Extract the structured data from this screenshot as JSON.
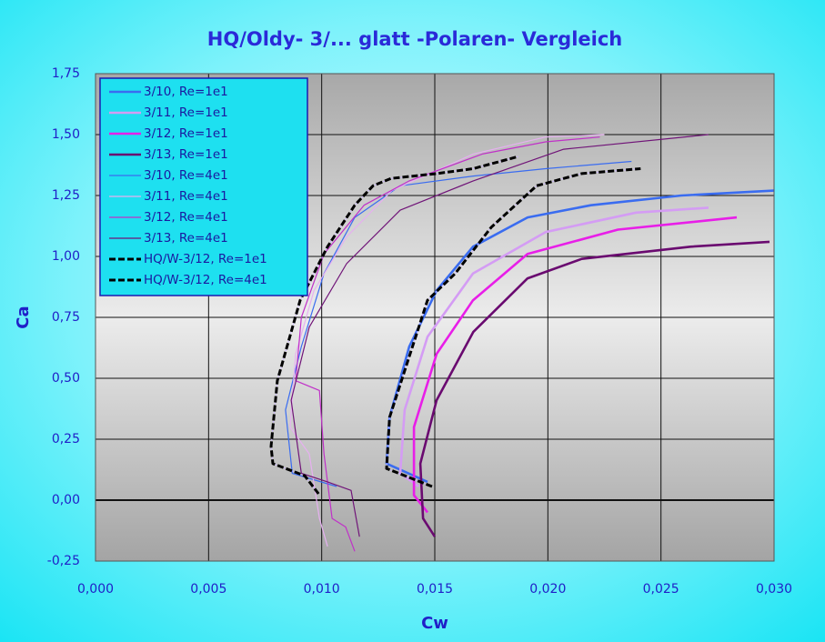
{
  "chart_data": {
    "type": "line",
    "title": "HQ/Oldy- 3/... glatt -Polaren- Vergleich",
    "x_label": "Cw",
    "y_label": "Ca",
    "xlim": [
      0,
      0.03
    ],
    "ylim": [
      -0.25,
      1.75
    ],
    "xticks": [
      {
        "value": 0,
        "label": "0,000"
      },
      {
        "value": 0.005,
        "label": "0,005"
      },
      {
        "value": 0.01,
        "label": "0,010"
      },
      {
        "value": 0.015,
        "label": "0,015"
      },
      {
        "value": 0.02,
        "label": "0,020"
      },
      {
        "value": 0.025,
        "label": "0,025"
      },
      {
        "value": 0.03,
        "label": "0,030"
      }
    ],
    "yticks": [
      {
        "value": -0.25,
        "label": "-0,25"
      },
      {
        "value": 0,
        "label": "0,00"
      },
      {
        "value": 0.25,
        "label": "0,25"
      },
      {
        "value": 0.5,
        "label": "0,50"
      },
      {
        "value": 0.75,
        "label": "0,75"
      },
      {
        "value": 1,
        "label": "1,00"
      },
      {
        "value": 1.25,
        "label": "1,25"
      },
      {
        "value": 1.5,
        "label": "1,50"
      },
      {
        "value": 1.75,
        "label": "1,75"
      }
    ],
    "grid": true,
    "legend": "top-left",
    "series": [
      {
        "name": "3/10, Re=1e1",
        "color": "#3a6cf0",
        "line_style": "bold",
        "x": [
          0.01468,
          0.01287,
          0.013,
          0.01387,
          0.01508,
          0.01669,
          0.0191,
          0.0219,
          0.0259,
          0.03
        ],
        "values": [
          0.075,
          0.15,
          0.34,
          0.63,
          0.86,
          1.04,
          1.16,
          1.21,
          1.25,
          1.27
        ]
      },
      {
        "name": "3/11, Re=1e1",
        "color": "#d49cf4",
        "line_style": "bold",
        "x": [
          0.01428,
          0.01347,
          0.01367,
          0.01468,
          0.01669,
          0.0199,
          0.0239,
          0.0271
        ],
        "values": [
          0.056,
          0.11,
          0.37,
          0.67,
          0.93,
          1.1,
          1.18,
          1.2
        ]
      },
      {
        "name": "3/12, Re=1e1",
        "color": "#e81ee8",
        "line_style": "bold",
        "x": [
          0.01468,
          0.01408,
          0.01408,
          0.01508,
          0.01669,
          0.0191,
          0.0231,
          0.02835
        ],
        "values": [
          -0.05,
          0.02,
          0.3,
          0.6,
          0.82,
          1.01,
          1.11,
          1.16
        ]
      },
      {
        "name": "3/13, Re=1e1",
        "color": "#6a0a70",
        "line_style": "bold",
        "x": [
          0.015,
          0.01448,
          0.01436,
          0.01508,
          0.0167,
          0.0191,
          0.0215,
          0.0263,
          0.0298
        ],
        "values": [
          -0.15,
          -0.075,
          0.15,
          0.41,
          0.69,
          0.91,
          0.99,
          1.04,
          1.06
        ]
      },
      {
        "name": "3/10, Re=4e1",
        "color": "#3a6cf0",
        "line_style": "thin",
        "x": [
          0.01066,
          0.0087,
          0.0084,
          0.0091,
          0.0101,
          0.01146,
          0.01347,
          0.0167,
          0.0199,
          0.0237
        ],
        "values": [
          0.056,
          0.11,
          0.37,
          0.63,
          0.93,
          1.16,
          1.29,
          1.33,
          1.36,
          1.39
        ]
      },
      {
        "name": "3/11, Re=4e1",
        "color": "#e6b0f0",
        "line_style": "thin",
        "x": [
          0.01026,
          0.0099,
          0.00945,
          0.0086,
          0.00885,
          0.00966,
          0.0111,
          0.0131,
          0.0167,
          0.0199,
          0.0225
        ],
        "values": [
          -0.19,
          -0.075,
          0.19,
          0.3,
          0.6,
          0.86,
          1.08,
          1.27,
          1.42,
          1.49,
          1.5
        ]
      },
      {
        "name": "3/12, Re=4e1",
        "color": "#c030c8",
        "line_style": "thin",
        "x": [
          0.01146,
          0.01106,
          0.01046,
          0.0101,
          0.0099,
          0.00885,
          0.0091,
          0.0101,
          0.01187,
          0.01387,
          0.0171,
          0.0199,
          0.0223
        ],
        "values": [
          -0.21,
          -0.11,
          -0.075,
          0.19,
          0.45,
          0.49,
          0.75,
          1.01,
          1.21,
          1.31,
          1.42,
          1.47,
          1.49
        ]
      },
      {
        "name": "3/13, Re=4e1",
        "color": "#701478",
        "line_style": "thin",
        "x": [
          0.01167,
          0.0113,
          0.01026,
          0.0091,
          0.00865,
          0.00945,
          0.0111,
          0.01347,
          0.0167,
          0.0207,
          0.0271
        ],
        "values": [
          -0.15,
          0.04,
          0.075,
          0.11,
          0.41,
          0.71,
          0.97,
          1.19,
          1.31,
          1.44,
          1.5
        ]
      },
      {
        "name": "HQ/W-3/12, Re=1e1",
        "color": "#000000",
        "line_style": "dashed",
        "x": [
          0.01488,
          0.01287,
          0.013,
          0.01468,
          0.0159,
          0.0175,
          0.0195,
          0.0215,
          0.0241
        ],
        "values": [
          0.056,
          0.13,
          0.34,
          0.82,
          0.93,
          1.12,
          1.29,
          1.34,
          1.36
        ]
      },
      {
        "name": "HQ/W-3/12, Re=4e1",
        "color": "#000000",
        "line_style": "dashed",
        "x": [
          0.00986,
          0.00925,
          0.00784,
          0.00776,
          0.00804,
          0.00905,
          0.01026,
          0.01146,
          0.01227,
          0.01307,
          0.01508,
          0.01669,
          0.0187
        ],
        "values": [
          0.026,
          0.1,
          0.15,
          0.22,
          0.49,
          0.82,
          1.04,
          1.21,
          1.29,
          1.32,
          1.34,
          1.36,
          1.41
        ]
      }
    ]
  }
}
